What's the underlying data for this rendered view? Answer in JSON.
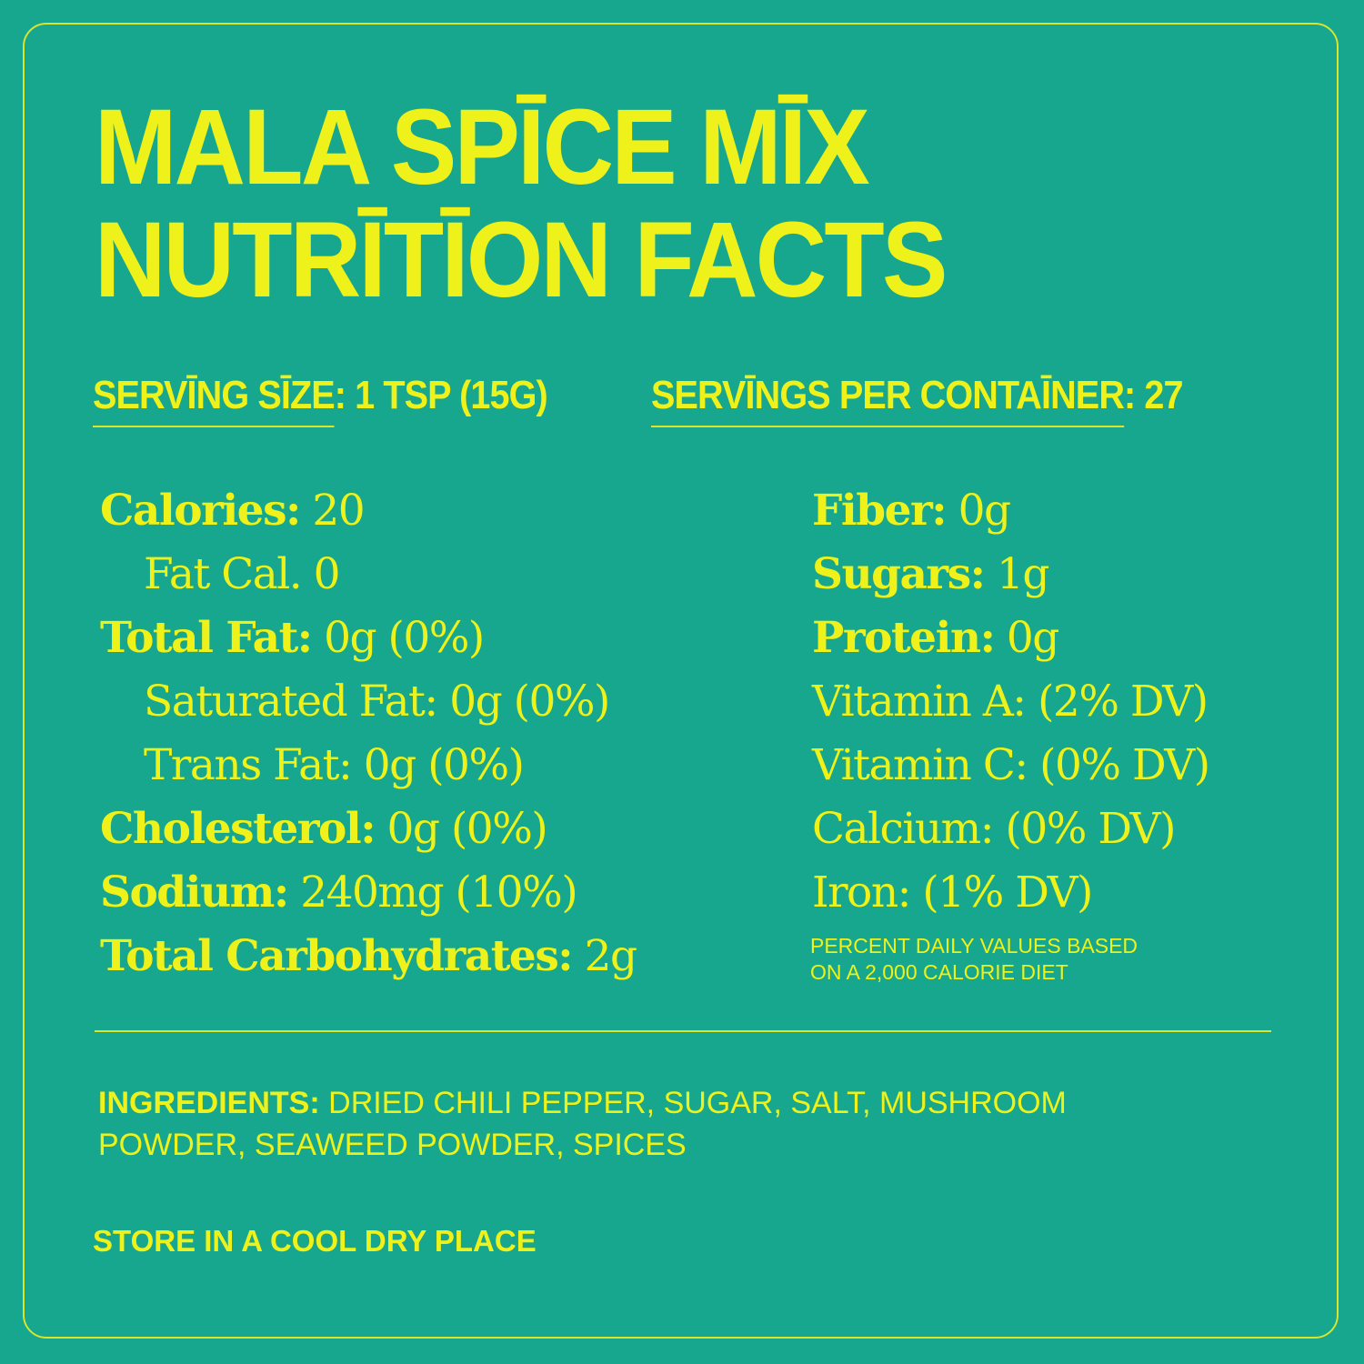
{
  "colors": {
    "background": "#17a68e",
    "text": "#eef21a",
    "rule": "#d9e42a"
  },
  "title": {
    "line1": "MALA SPĪCE MĪX",
    "line2": "NUTRĪTĪON FACTS"
  },
  "serving": {
    "size_label": "SERVĪNG SĪZE",
    "size_value": "1 TSP (15G)",
    "per_container_label": "SERVĪNGS PER CONTAĪNER",
    "per_container_value": "27"
  },
  "nutrients_left": [
    {
      "label": "Calories:",
      "value": "20",
      "bold": true
    },
    {
      "label": "",
      "value": "Fat Cal. 0",
      "bold": false
    },
    {
      "label": "Total Fat:",
      "value": "0g (0%)",
      "bold": true
    },
    {
      "label": "",
      "value": "Saturated Fat: 0g (0%)",
      "bold": false
    },
    {
      "label": "",
      "value": "Trans Fat: 0g (0%)",
      "bold": false
    },
    {
      "label": "Cholesterol:",
      "value": "0g (0%)",
      "bold": true
    },
    {
      "label": "Sodium:",
      "value": "240mg (10%)",
      "bold": true
    },
    {
      "label": "Total Carbohydrates:",
      "value": "2g",
      "bold": true
    }
  ],
  "nutrients_right": [
    {
      "label": "Fiber:",
      "value": "0g",
      "bold": true
    },
    {
      "label": "Sugars:",
      "value": "1g",
      "bold": true
    },
    {
      "label": "Protein:",
      "value": "0g",
      "bold": true
    },
    {
      "label": "",
      "value": "Vitamin A: (2% DV)",
      "bold": false
    },
    {
      "label": "",
      "value": "Vitamin C: (0% DV)",
      "bold": false
    },
    {
      "label": "",
      "value": "Calcium: (0% DV)",
      "bold": false
    },
    {
      "label": "",
      "value": "Iron: (1% DV)",
      "bold": false
    }
  ],
  "dv_note": {
    "line1": "PERCENT DAILY VALUES BASED",
    "line2": "ON A 2,000 CALORIE DIET"
  },
  "ingredients": {
    "label": "INGREDIENTS:",
    "text": "DRIED CHILI PEPPER, SUGAR, SALT, MUSHROOM POWDER, SEAWEED POWDER, SPICES"
  },
  "storage": "STORE IN A COOL DRY PLACE"
}
